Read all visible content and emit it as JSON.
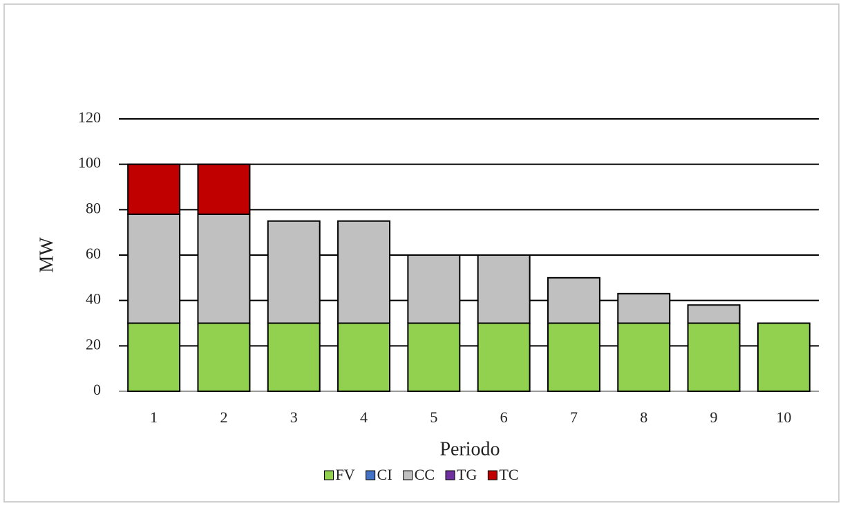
{
  "chart_data": {
    "type": "stacked-bar",
    "x_label": "Periodo",
    "y_label": "MW",
    "categories": [
      "1",
      "2",
      "3",
      "4",
      "5",
      "6",
      "7",
      "8",
      "9",
      "10"
    ],
    "series": [
      {
        "name": "FV",
        "color": "#92d050",
        "values": [
          30,
          30,
          30,
          30,
          30,
          30,
          30,
          30,
          30,
          30
        ]
      },
      {
        "name": "CI",
        "color": "#4472c4",
        "values": [
          0,
          0,
          0,
          0,
          0,
          0,
          0,
          0,
          0,
          0
        ]
      },
      {
        "name": "CC",
        "color": "#c0c0c0",
        "values": [
          48,
          48,
          45,
          45,
          30,
          30,
          20,
          13,
          8,
          0
        ]
      },
      {
        "name": "TG",
        "color": "#7030a0",
        "values": [
          0,
          0,
          0,
          0,
          0,
          0,
          0,
          0,
          0,
          0
        ]
      },
      {
        "name": "TC",
        "color": "#c00000",
        "values": [
          22,
          22,
          0,
          0,
          0,
          0,
          0,
          0,
          0,
          0
        ]
      }
    ],
    "ylim": [
      0,
      120
    ],
    "yticks": [
      0,
      20,
      40,
      60,
      80,
      100,
      120
    ],
    "grid": true,
    "legend": "bottom"
  }
}
